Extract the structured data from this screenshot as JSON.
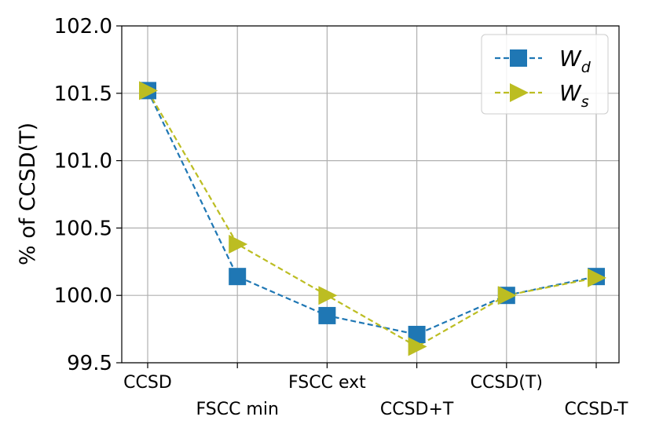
{
  "chart_data": {
    "type": "line",
    "title": "",
    "xlabel": "",
    "ylabel": "% of CCSD(T)",
    "ylim": [
      99.5,
      102.0
    ],
    "yticks": [
      "99.5",
      "100.0",
      "100.5",
      "101.0",
      "101.5",
      "102.0"
    ],
    "categories": [
      "CCSD",
      "FSCC min",
      "FSCC ext",
      "CCSD+T",
      "CCSD(T)",
      "CCSD-T"
    ],
    "grid": true,
    "legend_position": "top-right",
    "series": [
      {
        "name": "W",
        "subscript": "d",
        "marker": "square",
        "color": "#1f77b4",
        "line_style": "dashed",
        "values": [
          101.52,
          100.14,
          99.85,
          99.71,
          100.0,
          100.14
        ]
      },
      {
        "name": "W",
        "subscript": "s",
        "marker": "triangle-right",
        "color": "#bcbd22",
        "line_style": "dashed",
        "values": [
          101.52,
          100.38,
          100.0,
          99.62,
          100.0,
          100.13
        ]
      }
    ]
  }
}
